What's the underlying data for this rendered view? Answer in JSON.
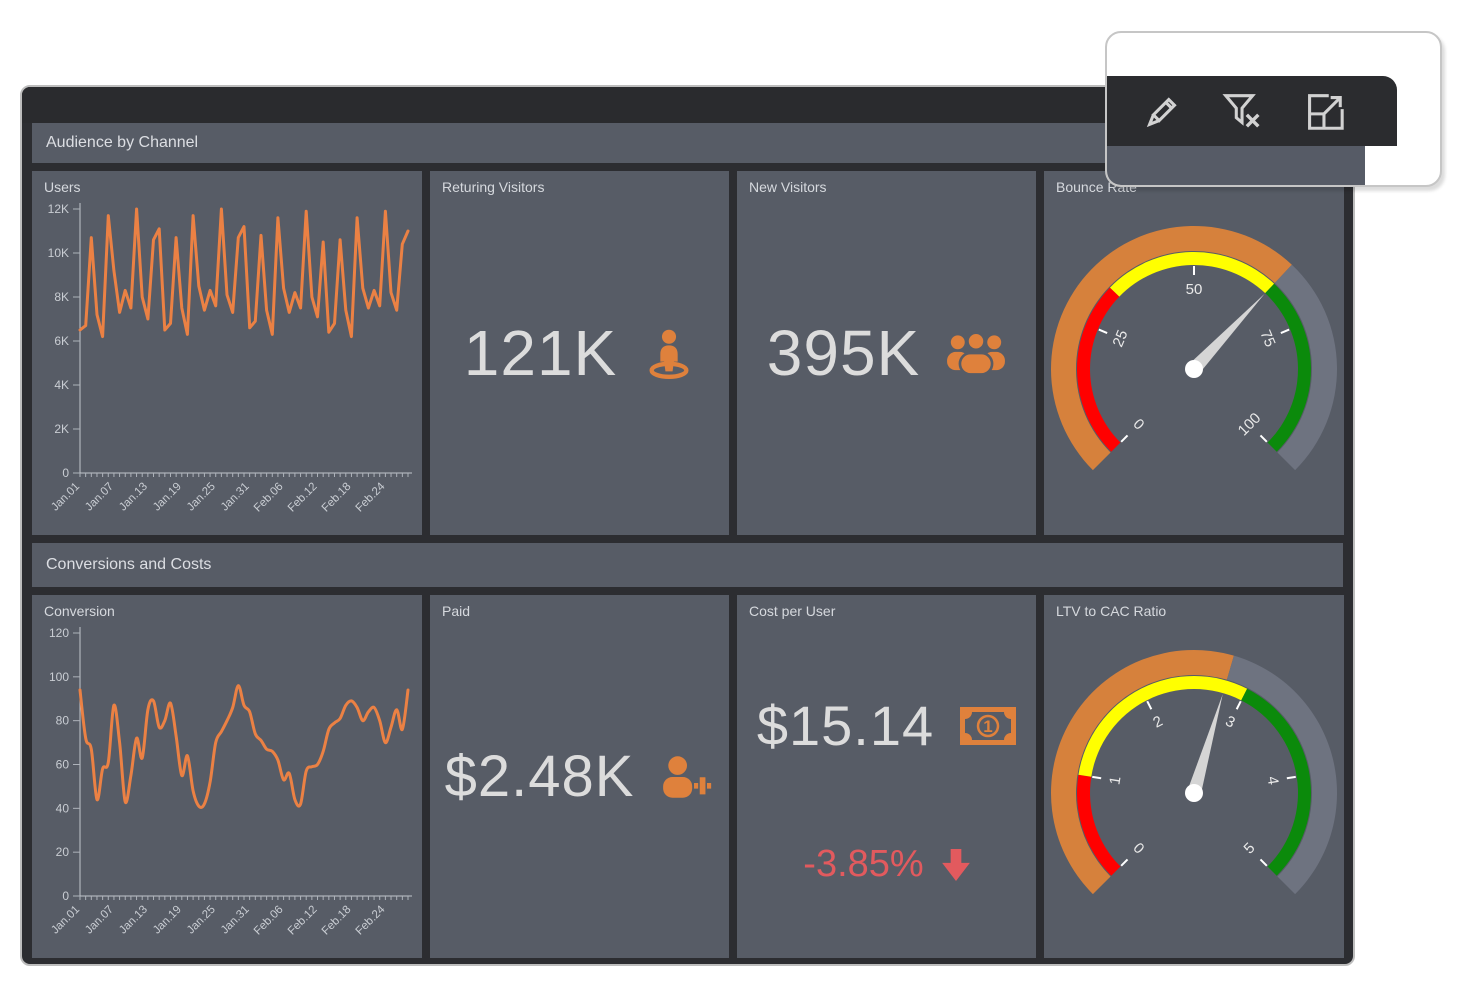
{
  "window": {
    "topbar": ""
  },
  "toolbar_card": {
    "icons": [
      {
        "name": "edit-pencil-icon",
        "action": "Edit dashboard"
      },
      {
        "name": "clear-filter-icon",
        "action": "Clear filter"
      },
      {
        "name": "expand-icon",
        "action": "Maximize"
      }
    ]
  },
  "sections": {
    "audience": {
      "title": "Audience by Channel"
    },
    "conversions": {
      "title": "Conversions and Costs"
    }
  },
  "panels": {
    "users": {
      "title": "Users"
    },
    "returning": {
      "title": "Returing Visitors",
      "value": "121K",
      "icon": "street-view-icon"
    },
    "new_visitors": {
      "title": "New Visitors",
      "value": "395K",
      "icon": "users-group-icon"
    },
    "bounce": {
      "title": "Bounce Rate"
    },
    "conversion": {
      "title": "Conversion"
    },
    "paid": {
      "title": "Paid",
      "value": "$2.48K",
      "icon": "user-plus-icon"
    },
    "cost": {
      "title": "Cost per User",
      "value": "$15.14",
      "icon": "banknote-icon",
      "delta": "-3.85%",
      "delta_icon": "arrow-down-icon"
    },
    "ltv": {
      "title": "LTV to CAC Ratio"
    }
  },
  "colors": {
    "accent_orange": "#DF813C",
    "line_orange": "#EB8144",
    "panel_bg": "#575C66",
    "frame_bg": "#2C2D31",
    "value_text": "#DCDCDC",
    "negative_red": "#E25A5E",
    "gauge_red": "#FF0000",
    "gauge_yellow": "#FFFF00",
    "gauge_green": "#0B8A0B",
    "gauge_rest_gray": "#6E7380",
    "needle": "#D5D5D5"
  },
  "chart_data": [
    {
      "type": "line",
      "title": "Users",
      "smooth": false,
      "stroke": "#EB8144",
      "ymin": 0,
      "ymax": 12000,
      "y_ticks": [
        {
          "v": 0,
          "l": "0"
        },
        {
          "v": 2000,
          "l": "2K"
        },
        {
          "v": 4000,
          "l": "4K"
        },
        {
          "v": 6000,
          "l": "6K"
        },
        {
          "v": 8000,
          "l": "8K"
        },
        {
          "v": 10000,
          "l": "10K"
        },
        {
          "v": 12000,
          "l": "12K"
        }
      ],
      "x_labels": [
        "Jan.01",
        "Jan.07",
        "Jan.13",
        "Jan.19",
        "Jan.25",
        "Jan.31",
        "Feb.06",
        "Feb.12",
        "Feb.18",
        "Feb.24"
      ],
      "x_label_indices": [
        0,
        6,
        12,
        18,
        24,
        30,
        36,
        42,
        48,
        54
      ],
      "values": [
        6500,
        6700,
        10700,
        7200,
        6200,
        11700,
        9200,
        7300,
        8300,
        7500,
        12000,
        8000,
        7000,
        10600,
        11100,
        6500,
        6800,
        10700,
        7500,
        6300,
        11700,
        8500,
        7400,
        8300,
        7600,
        12000,
        8100,
        7300,
        10700,
        11200,
        6600,
        6900,
        10800,
        7400,
        6300,
        11600,
        8400,
        7300,
        8200,
        7500,
        11900,
        8000,
        7100,
        10500,
        6400,
        6800,
        10600,
        7400,
        6200,
        11600,
        8400,
        7500,
        8300,
        7600,
        11900,
        8200,
        7400,
        10400,
        11000
      ]
    },
    {
      "type": "line",
      "title": "Conversion",
      "smooth": true,
      "stroke": "#EB8144",
      "ymin": 0,
      "ymax": 120,
      "y_ticks": [
        {
          "v": 0,
          "l": "0"
        },
        {
          "v": 20,
          "l": "20"
        },
        {
          "v": 40,
          "l": "40"
        },
        {
          "v": 60,
          "l": "60"
        },
        {
          "v": 80,
          "l": "80"
        },
        {
          "v": 100,
          "l": "100"
        },
        {
          "v": 120,
          "l": "120"
        }
      ],
      "x_labels": [
        "Jan.01",
        "Jan.07",
        "Jan.13",
        "Jan.19",
        "Jan.25",
        "Jan.31",
        "Feb.06",
        "Feb.12",
        "Feb.18",
        "Feb.24"
      ],
      "x_label_indices": [
        0,
        6,
        12,
        18,
        24,
        30,
        36,
        42,
        48,
        54
      ],
      "values": [
        94,
        72,
        67,
        44,
        58,
        61,
        87,
        70,
        43,
        55,
        72,
        63,
        85,
        89,
        77,
        80,
        88,
        73,
        55,
        64,
        48,
        41,
        42,
        52,
        70,
        75,
        80,
        86,
        96,
        87,
        84,
        74,
        71,
        67,
        66,
        62,
        53,
        56,
        44,
        42,
        57,
        59,
        60,
        66,
        76,
        79,
        81,
        87,
        89,
        86,
        80,
        84,
        86,
        80,
        70,
        77,
        85,
        76,
        94
      ]
    },
    {
      "type": "gauge",
      "title": "Bounce Rate",
      "min": 0,
      "max": 100,
      "value": 66,
      "ticks": [
        {
          "v": 0,
          "l": "0"
        },
        {
          "v": 25,
          "l": "25"
        },
        {
          "v": 50,
          "l": "50"
        },
        {
          "v": 75,
          "l": "75"
        },
        {
          "v": 100,
          "l": "100"
        }
      ],
      "bands": [
        {
          "from": 0,
          "to": 33,
          "color": "#FF0000"
        },
        {
          "from": 33,
          "to": 66,
          "color": "#FFFF00"
        },
        {
          "from": 66,
          "to": 100,
          "color": "#0B8A0B"
        }
      ],
      "outer": [
        {
          "from": 0,
          "to": 66,
          "color": "#D6813C"
        },
        {
          "from": 66,
          "to": 100,
          "color": "#6E7380"
        }
      ]
    },
    {
      "type": "gauge",
      "title": "LTV to CAC Ratio",
      "min": 0,
      "max": 5,
      "value": 2.8,
      "ticks": [
        {
          "v": 0,
          "l": "0"
        },
        {
          "v": 1,
          "l": "1"
        },
        {
          "v": 2,
          "l": "2"
        },
        {
          "v": 3,
          "l": "3"
        },
        {
          "v": 4,
          "l": "4"
        },
        {
          "v": 5,
          "l": "5"
        }
      ],
      "bands": [
        {
          "from": 0,
          "to": 1,
          "color": "#FF0000"
        },
        {
          "from": 1,
          "to": 3,
          "color": "#FFFF00"
        },
        {
          "from": 3,
          "to": 5,
          "color": "#0B8A0B"
        }
      ],
      "outer": [
        {
          "from": 0,
          "to": 2.8,
          "color": "#D6813C"
        },
        {
          "from": 2.8,
          "to": 5,
          "color": "#6E7380"
        }
      ]
    }
  ]
}
